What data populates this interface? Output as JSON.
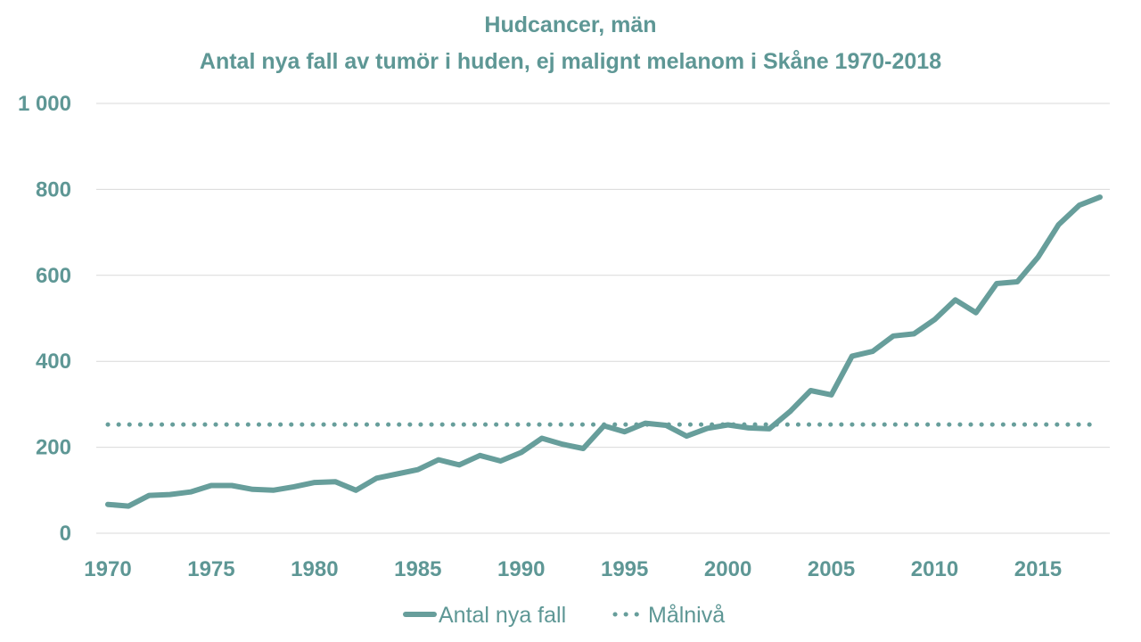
{
  "chart_data": {
    "type": "line",
    "title": "Hudcancer, män",
    "subtitle": "Antal nya fall av tumör i huden, ej malignt melanom i Skåne 1970-2018",
    "xlabel": "",
    "ylabel": "",
    "ylim": [
      0,
      1000
    ],
    "xlim": [
      1970,
      2018
    ],
    "y_ticks": [
      0,
      200,
      400,
      600,
      800,
      1000
    ],
    "y_tick_labels": [
      "0",
      "200",
      "400",
      "600",
      "800",
      "1 000"
    ],
    "x_ticks": [
      1970,
      1975,
      1980,
      1985,
      1990,
      1995,
      2000,
      2005,
      2010,
      2015
    ],
    "x_tick_labels": [
      "1970",
      "1975",
      "1980",
      "1985",
      "1990",
      "1995",
      "2000",
      "2005",
      "2010",
      "2015"
    ],
    "grid": true,
    "legend_position": "bottom",
    "colors": {
      "line": "#679e9b",
      "target": "#679e9b",
      "grid": "#d9d9d9",
      "text": "#5e9795"
    },
    "x": [
      1970,
      1971,
      1972,
      1973,
      1974,
      1975,
      1976,
      1977,
      1978,
      1979,
      1980,
      1981,
      1982,
      1983,
      1984,
      1985,
      1986,
      1987,
      1988,
      1989,
      1990,
      1991,
      1992,
      1993,
      1994,
      1995,
      1996,
      1997,
      1998,
      1999,
      2000,
      2001,
      2002,
      2003,
      2004,
      2005,
      2006,
      2007,
      2008,
      2009,
      2010,
      2011,
      2012,
      2013,
      2014,
      2015,
      2016,
      2017,
      2018
    ],
    "series": [
      {
        "name": "Antal nya fall",
        "style": "solid",
        "values": [
          67,
          63,
          88,
          90,
          96,
          111,
          111,
          102,
          100,
          108,
          118,
          120,
          100,
          128,
          138,
          148,
          171,
          159,
          181,
          168,
          188,
          221,
          207,
          197,
          250,
          236,
          256,
          251,
          226,
          244,
          252,
          245,
          243,
          283,
          332,
          322,
          412,
          423,
          459,
          464,
          497,
          543,
          513,
          581,
          585,
          642,
          718,
          763,
          782
        ]
      },
      {
        "name": "Målnivå",
        "style": "dotted",
        "values": [
          253,
          253,
          253,
          253,
          253,
          253,
          253,
          253,
          253,
          253,
          253,
          253,
          253,
          253,
          253,
          253,
          253,
          253,
          253,
          253,
          253,
          253,
          253,
          253,
          253,
          253,
          253,
          253,
          253,
          253,
          253,
          253,
          253,
          253,
          253,
          253,
          253,
          253,
          253,
          253,
          253,
          253,
          253,
          253,
          253,
          253,
          253,
          253,
          253
        ]
      }
    ]
  }
}
